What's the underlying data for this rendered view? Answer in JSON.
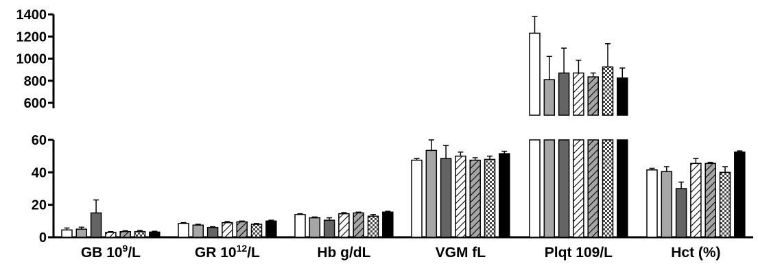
{
  "chart_data": {
    "type": "bar",
    "title": "",
    "xlabel": "",
    "ylabel": "",
    "broken_axis": true,
    "lower_axis": {
      "ylim": [
        0,
        60
      ],
      "ticks": [
        "0",
        "20",
        "40",
        "60"
      ]
    },
    "upper_axis": {
      "ylim": [
        500,
        1400
      ],
      "ticks": [
        "600",
        "800",
        "1000",
        "1200",
        "1400"
      ]
    },
    "categories": [
      {
        "label_parts": [
          "GB 10",
          "9",
          "/L"
        ]
      },
      {
        "label_parts": [
          "GR 10",
          "12",
          "/L"
        ]
      },
      {
        "label_parts": [
          "Hb g/dL"
        ]
      },
      {
        "label_parts": [
          "VGM fL"
        ]
      },
      {
        "label_parts": [
          "Plqt 109/L"
        ]
      },
      {
        "label_parts": [
          "Hct (%)"
        ]
      }
    ],
    "series": [
      {
        "fill": "white",
        "values": [
          4.5,
          8.5,
          14,
          47.5,
          1230,
          41.5
        ],
        "errors": [
          1.2,
          0.5,
          0.5,
          1,
          150,
          1
        ]
      },
      {
        "fill": "lightgray",
        "values": [
          5,
          7.5,
          12,
          53.5,
          810,
          40.5
        ],
        "errors": [
          1.2,
          0.5,
          0.5,
          6.5,
          210,
          3
        ]
      },
      {
        "fill": "darkgray",
        "values": [
          15,
          6,
          10.5,
          48.5,
          870,
          30
        ],
        "errors": [
          8,
          0.5,
          1.5,
          8,
          225,
          4
        ]
      },
      {
        "fill": "hatch-white",
        "values": [
          3,
          9,
          14.5,
          50,
          870,
          45.5
        ],
        "errors": [
          0.5,
          0.7,
          0.7,
          2.5,
          115,
          3
        ]
      },
      {
        "fill": "hatch-gray",
        "values": [
          3.5,
          9.5,
          15,
          47.5,
          835,
          45.5
        ],
        "errors": [
          0.5,
          0.5,
          0.5,
          1.5,
          35,
          0.7
        ]
      },
      {
        "fill": "checker",
        "values": [
          3.5,
          8,
          13,
          48,
          925,
          40
        ],
        "errors": [
          0.7,
          0.5,
          1,
          2,
          210,
          3.5
        ]
      },
      {
        "fill": "black",
        "values": [
          3.2,
          10,
          15.5,
          51.5,
          825,
          52.5
        ],
        "errors": [
          0.5,
          0.5,
          0.5,
          1.5,
          90,
          0.7
        ]
      }
    ],
    "colors": {
      "white": "#ffffff",
      "lightgray": "#a6a6a6",
      "darkgray": "#646464",
      "hatch_gray_bg": "#a6a6a6",
      "black": "#000000"
    },
    "legend": "none",
    "grid": false
  }
}
